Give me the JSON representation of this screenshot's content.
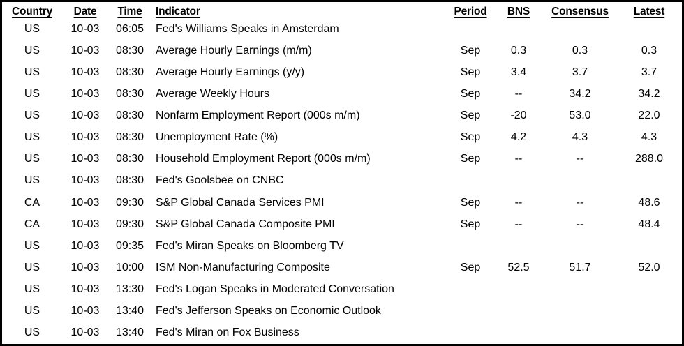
{
  "colors": {
    "border": "#000000",
    "background": "#ffffff",
    "text": "#000000"
  },
  "chart_data": {
    "type": "table",
    "columns": [
      "Country",
      "Date",
      "Time",
      "Indicator",
      "Period",
      "BNS",
      "Consensus",
      "Latest"
    ],
    "rows": [
      [
        "US",
        "10-03",
        "06:05",
        "Fed's Williams Speaks in Amsterdam",
        "",
        "",
        "",
        ""
      ],
      [
        "US",
        "10-03",
        "08:30",
        "Average Hourly Earnings (m/m)",
        "Sep",
        "0.3",
        "0.3",
        "0.3"
      ],
      [
        "US",
        "10-03",
        "08:30",
        "Average Hourly Earnings (y/y)",
        "Sep",
        "3.4",
        "3.7",
        "3.7"
      ],
      [
        "US",
        "10-03",
        "08:30",
        "Average Weekly Hours",
        "Sep",
        "--",
        "34.2",
        "34.2"
      ],
      [
        "US",
        "10-03",
        "08:30",
        "Nonfarm Employment Report (000s m/m)",
        "Sep",
        "-20",
        "53.0",
        "22.0"
      ],
      [
        "US",
        "10-03",
        "08:30",
        "Unemployment Rate (%)",
        "Sep",
        "4.2",
        "4.3",
        "4.3"
      ],
      [
        "US",
        "10-03",
        "08:30",
        "Household Employment Report (000s m/m)",
        "Sep",
        "--",
        "--",
        "288.0"
      ],
      [
        "US",
        "10-03",
        "08:30",
        "Fed's Goolsbee on CNBC",
        "",
        "",
        "",
        ""
      ],
      [
        "CA",
        "10-03",
        "09:30",
        "S&P Global Canada Services PMI",
        "Sep",
        "--",
        "--",
        "48.6"
      ],
      [
        "CA",
        "10-03",
        "09:30",
        "S&P Global Canada Composite PMI",
        "Sep",
        "--",
        "--",
        "48.4"
      ],
      [
        "US",
        "10-03",
        "09:35",
        "Fed's Miran Speaks on Bloomberg TV",
        "",
        "",
        "",
        ""
      ],
      [
        "US",
        "10-03",
        "10:00",
        "ISM Non-Manufacturing Composite",
        "Sep",
        "52.5",
        "51.7",
        "52.0"
      ],
      [
        "US",
        "10-03",
        "13:30",
        "Fed's Logan Speaks in Moderated Conversation",
        "",
        "",
        "",
        ""
      ],
      [
        "US",
        "10-03",
        "13:40",
        "Fed's Jefferson Speaks on Economic Outlook",
        "",
        "",
        "",
        ""
      ],
      [
        "US",
        "10-03",
        "13:40",
        "Fed's Miran on Fox Business",
        "",
        "",
        "",
        ""
      ]
    ]
  }
}
